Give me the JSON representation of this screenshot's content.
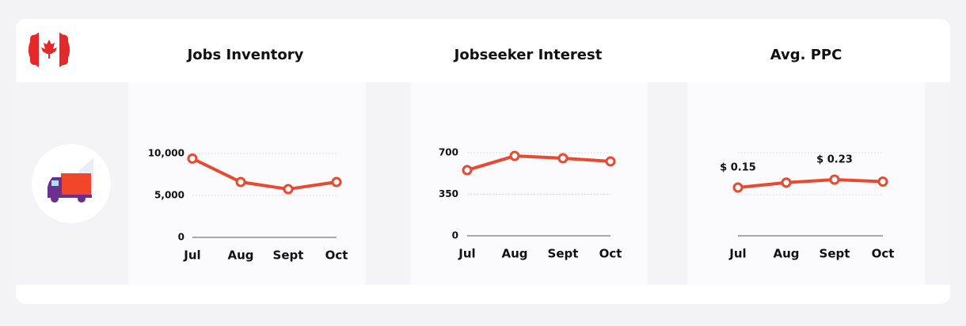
{
  "chart_data": [
    {
      "type": "line",
      "title": "Jobs Inventory",
      "categories": [
        "Jul",
        "Aug",
        "Sept",
        "Oct"
      ],
      "series": [
        {
          "color": "#e8492f",
          "values": [
            9400,
            6600,
            5750,
            6600
          ]
        }
      ],
      "ylim": [
        0,
        10000
      ],
      "yticks": [
        0,
        {
          "value": 5000,
          "label": "5,000"
        },
        {
          "value": 10000,
          "label": "10,000"
        }
      ],
      "grid": true
    },
    {
      "type": "line",
      "title": "Jobseeker Interest",
      "categories": [
        "Jul",
        "Aug",
        "Sept",
        "Oct"
      ],
      "series": [
        {
          "color": "#e8492f",
          "values": [
            553,
            673,
            653,
            627
          ]
        }
      ],
      "ylim": [
        0,
        700
      ],
      "yticks": [
        0,
        350,
        700
      ],
      "grid": true
    },
    {
      "type": "line",
      "title": "Avg. PPC",
      "categories": [
        "Jul",
        "Aug",
        "Sept",
        "Oct"
      ],
      "series": [
        {
          "color": "#e8492f",
          "values": [
            0.15,
            0.2,
            0.23,
            0.21
          ],
          "value_labels": [
            "$ 0.15",
            null,
            "$ 0.23",
            null
          ]
        }
      ],
      "ylim": [
        -0.338,
        0.502
      ],
      "grid": true
    }
  ]
}
